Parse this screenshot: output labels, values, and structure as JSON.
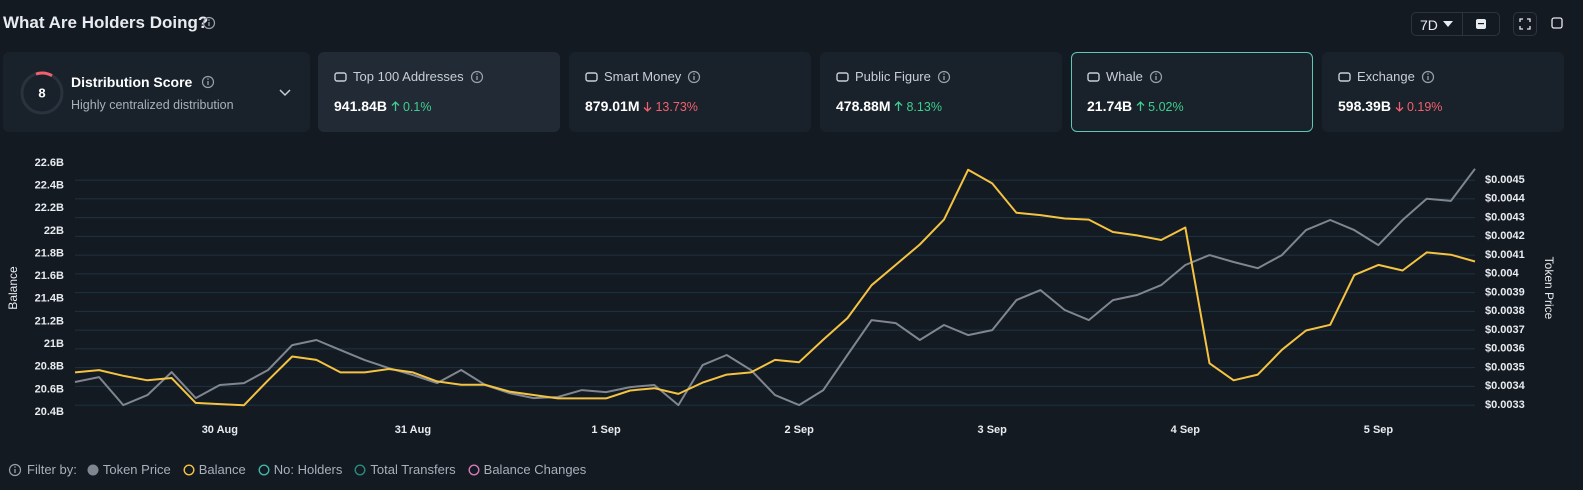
{
  "header": {
    "title": "What Are Holders Doing?",
    "range": "7D"
  },
  "distribution": {
    "score": "8",
    "title": "Distribution Score",
    "subtitle": "Highly centralized distribution"
  },
  "cards": [
    {
      "label": "Top 100 Addresses",
      "value": "941.84B",
      "change": "0.1%",
      "trend": "up",
      "selected": false,
      "hover": true
    },
    {
      "label": "Smart Money",
      "value": "879.01M",
      "change": "13.73%",
      "trend": "down",
      "selected": false,
      "hover": false
    },
    {
      "label": "Public Figure",
      "value": "478.88M",
      "change": "8.13%",
      "trend": "up",
      "selected": false,
      "hover": false
    },
    {
      "label": "Whale",
      "value": "21.74B",
      "change": "5.02%",
      "trend": "up",
      "selected": true,
      "hover": false
    },
    {
      "label": "Exchange",
      "value": "598.39B",
      "change": "0.19%",
      "trend": "down",
      "selected": false,
      "hover": false
    }
  ],
  "chart_data": {
    "type": "line",
    "ylabel": "Balance",
    "y2label": "Token Price",
    "x": [
      0,
      1,
      2,
      3,
      4,
      5,
      6,
      7,
      8,
      9,
      10,
      11,
      12,
      13,
      14,
      15,
      16,
      17,
      18,
      19,
      20,
      21,
      22,
      23,
      24,
      25,
      26,
      27,
      28,
      29,
      30,
      31,
      32,
      33,
      34,
      35,
      36,
      37,
      38,
      39,
      40,
      41,
      42,
      43,
      44,
      45,
      46,
      47,
      48,
      49,
      50,
      51,
      52,
      53,
      54,
      55,
      56,
      57,
      58
    ],
    "xlim": [
      0,
      58
    ],
    "xticks": [
      {
        "value": 6,
        "label": "30 Aug"
      },
      {
        "value": 14,
        "label": "31 Aug"
      },
      {
        "value": 22,
        "label": "1 Sep"
      },
      {
        "value": 30,
        "label": "2 Sep"
      },
      {
        "value": 38,
        "label": "3 Sep"
      },
      {
        "value": 46,
        "label": "4 Sep"
      },
      {
        "value": 54,
        "label": "5 Sep"
      }
    ],
    "ylim": [
      20.4,
      22.6
    ],
    "yticks": [
      {
        "value": 20.4,
        "label": "20.4B"
      },
      {
        "value": 20.6,
        "label": "20.6B"
      },
      {
        "value": 20.8,
        "label": "20.8B"
      },
      {
        "value": 21,
        "label": "21B"
      },
      {
        "value": 21.2,
        "label": "21.2B"
      },
      {
        "value": 21.4,
        "label": "21.4B"
      },
      {
        "value": 21.6,
        "label": "21.6B"
      },
      {
        "value": 21.8,
        "label": "21.8B"
      },
      {
        "value": 22,
        "label": "22B"
      },
      {
        "value": 22.2,
        "label": "22.2B"
      },
      {
        "value": 22.4,
        "label": "22.4B"
      },
      {
        "value": 22.6,
        "label": "22.6B"
      }
    ],
    "y2lim": [
      0.003263,
      0.004591
    ],
    "y2ticks": [
      {
        "value": 0.0033,
        "label": "$0.0033"
      },
      {
        "value": 0.0034,
        "label": "$0.0034"
      },
      {
        "value": 0.0035,
        "label": "$0.0035"
      },
      {
        "value": 0.0036,
        "label": "$0.0036"
      },
      {
        "value": 0.0037,
        "label": "$0.0037"
      },
      {
        "value": 0.0038,
        "label": "$0.0038"
      },
      {
        "value": 0.0039,
        "label": "$0.0039"
      },
      {
        "value": 0.004,
        "label": "$0.004"
      },
      {
        "value": 0.0041,
        "label": "$0.0041"
      },
      {
        "value": 0.0042,
        "label": "$0.0042"
      },
      {
        "value": 0.0043,
        "label": "$0.0043"
      },
      {
        "value": 0.0044,
        "label": "$0.0044"
      },
      {
        "value": 0.0045,
        "label": "$0.0045"
      }
    ],
    "grid": true,
    "series": [
      {
        "name": "Token Price",
        "color": "#80868f",
        "axis": "y2",
        "legend_marker": "filled",
        "values": [
          0.003423,
          0.003449,
          0.0033,
          0.003353,
          0.003476,
          0.003337,
          0.003407,
          0.003417,
          0.003487,
          0.00362,
          0.003647,
          0.003593,
          0.00354,
          0.003497,
          0.00346,
          0.003417,
          0.003487,
          0.003407,
          0.003364,
          0.003337,
          0.003343,
          0.00338,
          0.003369,
          0.003396,
          0.003407,
          0.0033,
          0.003513,
          0.003567,
          0.003487,
          0.003353,
          0.0033,
          0.00338,
          0.003567,
          0.003753,
          0.003737,
          0.003647,
          0.003727,
          0.003673,
          0.0037,
          0.00386,
          0.003913,
          0.003807,
          0.003753,
          0.00386,
          0.003887,
          0.00394,
          0.004047,
          0.0041,
          0.004063,
          0.00403,
          0.0041,
          0.004233,
          0.004287,
          0.004233,
          0.004153,
          0.004287,
          0.0044,
          0.004389,
          0.00456
        ]
      },
      {
        "name": "Balance",
        "color": "#f5c342",
        "legend_marker": "ring",
        "values": [
          20.75,
          20.77,
          20.72,
          20.68,
          20.7,
          20.48,
          20.47,
          20.46,
          20.68,
          20.89,
          20.86,
          20.75,
          20.75,
          20.78,
          20.75,
          20.67,
          20.64,
          20.64,
          20.58,
          20.55,
          20.52,
          20.52,
          20.52,
          20.59,
          20.61,
          20.56,
          20.66,
          20.73,
          20.75,
          20.86,
          20.84,
          21.04,
          21.23,
          21.52,
          21.7,
          21.88,
          22.1,
          22.54,
          22.42,
          22.16,
          22.14,
          22.11,
          22.1,
          21.99,
          21.96,
          21.92,
          22.03,
          20.83,
          20.68,
          20.73,
          20.95,
          21.12,
          21.17,
          21.61,
          21.7,
          21.65,
          21.81,
          21.79,
          21.73
        ]
      }
    ],
    "filter_label": "Filter by:",
    "other_filters": [
      {
        "name": "No: Holders",
        "color": "#3fb6a8"
      },
      {
        "name": "Total Transfers",
        "color": "#2a8a7a"
      },
      {
        "name": "Balance Changes",
        "color": "#d779b8"
      }
    ]
  }
}
